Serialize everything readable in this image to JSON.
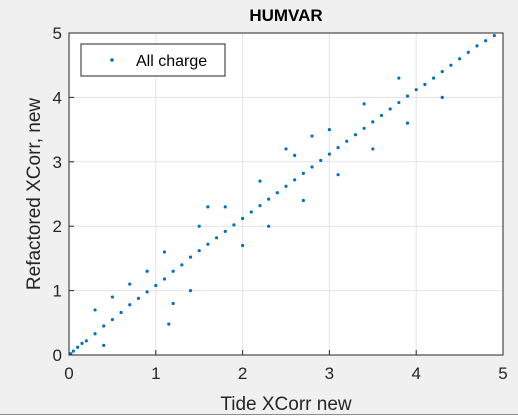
{
  "chart_data": {
    "type": "scatter",
    "title": "HUMVAR",
    "xlabel": "Tide XCorr new",
    "ylabel": "Refactored XCorr, new",
    "xlim": [
      0,
      5
    ],
    "ylim": [
      0,
      5
    ],
    "xticks": [
      "0",
      "1",
      "2",
      "3",
      "4",
      "5"
    ],
    "yticks": [
      "0",
      "1",
      "2",
      "3",
      "4",
      "5"
    ],
    "grid": true,
    "legend": {
      "entries": [
        "All charge"
      ],
      "position": "top-left"
    },
    "series": [
      {
        "name": "All charge",
        "color": "#0072bd",
        "marker": "point",
        "x": [
          0.02,
          0.05,
          0.1,
          0.15,
          0.2,
          0.3,
          0.4,
          0.5,
          0.6,
          0.7,
          0.8,
          0.9,
          1.0,
          1.1,
          1.2,
          1.3,
          1.4,
          1.5,
          1.6,
          1.7,
          1.8,
          1.9,
          2.0,
          2.1,
          2.2,
          2.3,
          2.4,
          2.5,
          2.6,
          2.7,
          2.8,
          2.9,
          3.0,
          3.1,
          3.2,
          3.3,
          3.4,
          3.5,
          3.6,
          3.7,
          3.8,
          3.9,
          4.0,
          4.1,
          4.2,
          4.3,
          4.4,
          4.5,
          4.6,
          4.7,
          4.8,
          4.9,
          0.3,
          0.5,
          0.7,
          1.1,
          1.5,
          1.8,
          2.2,
          2.6,
          3.0,
          3.4,
          3.8,
          1.2,
          1.4,
          2.0,
          2.3,
          2.7,
          3.1,
          3.5,
          3.9,
          4.3,
          1.15,
          2.5,
          0.4,
          0.9,
          1.6,
          2.8
        ],
        "y": [
          0.02,
          0.06,
          0.12,
          0.18,
          0.22,
          0.33,
          0.45,
          0.55,
          0.66,
          0.78,
          0.88,
          0.98,
          1.08,
          1.18,
          1.3,
          1.4,
          1.52,
          1.62,
          1.72,
          1.82,
          1.92,
          2.02,
          2.12,
          2.22,
          2.32,
          2.42,
          2.52,
          2.62,
          2.72,
          2.82,
          2.92,
          3.02,
          3.12,
          3.22,
          3.32,
          3.42,
          3.52,
          3.62,
          3.72,
          3.82,
          3.92,
          4.02,
          4.12,
          4.2,
          4.3,
          4.4,
          4.5,
          4.6,
          4.7,
          4.8,
          4.88,
          4.96,
          0.7,
          0.9,
          1.1,
          1.6,
          2.0,
          2.3,
          2.7,
          3.1,
          3.5,
          3.9,
          4.3,
          0.8,
          1.0,
          1.7,
          2.0,
          2.4,
          2.8,
          3.2,
          3.6,
          4.0,
          0.48,
          3.2,
          0.15,
          1.3,
          2.3,
          3.4
        ]
      }
    ]
  }
}
